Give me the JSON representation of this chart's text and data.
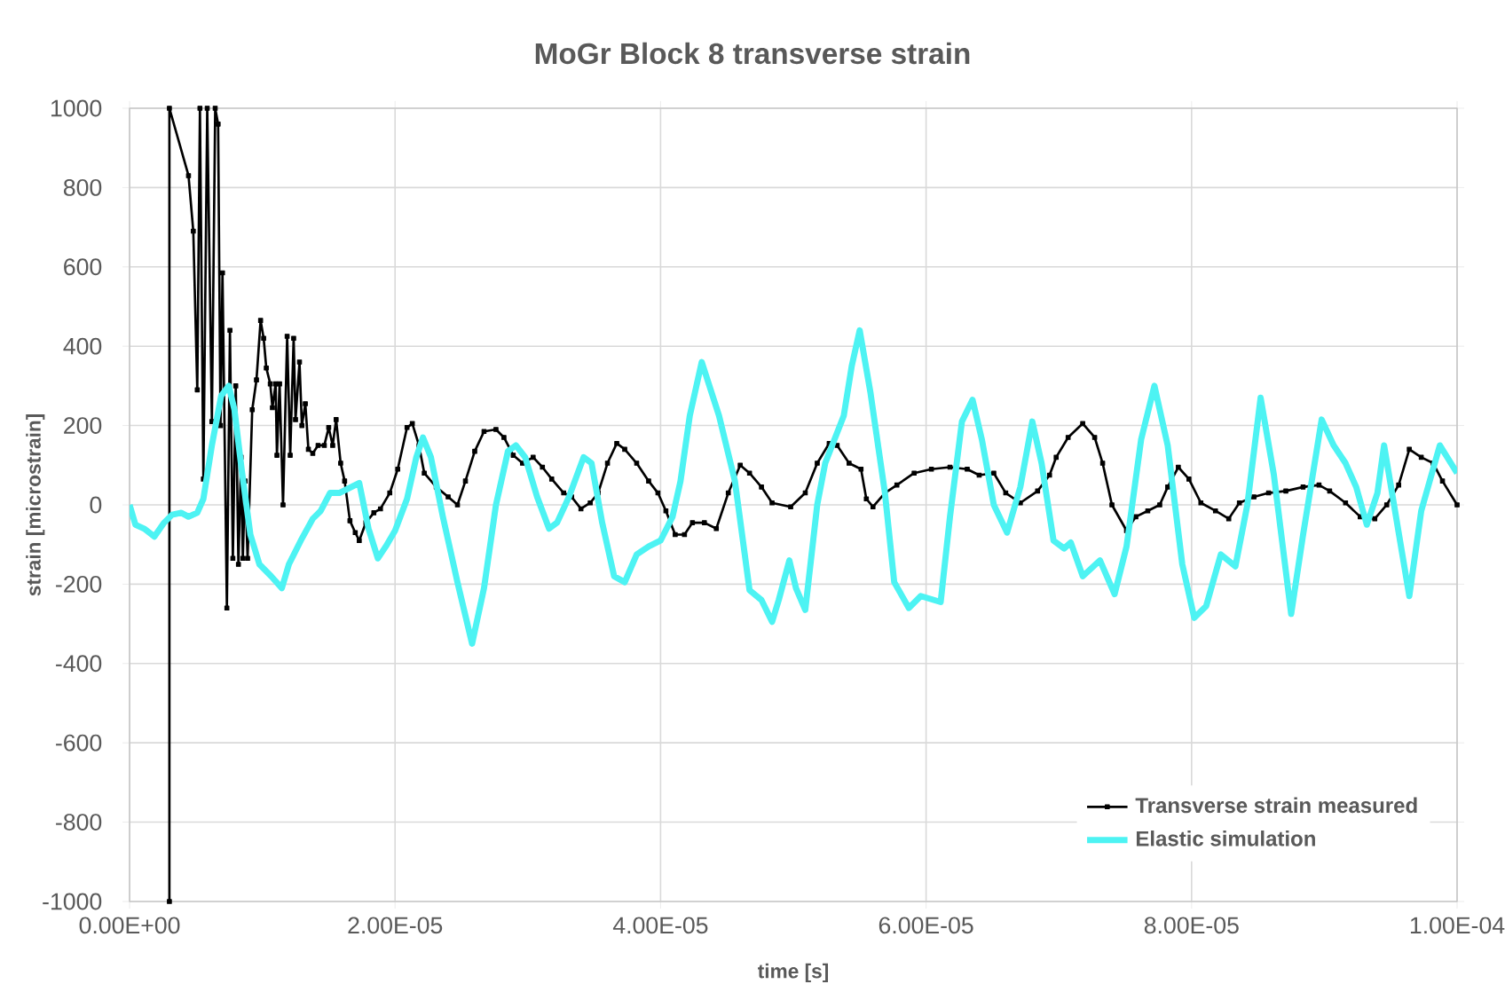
{
  "chart_data": {
    "type": "line",
    "title": "MoGr Block 8 transverse strain",
    "xlabel": "time [s]",
    "ylabel": "strain [microstrain]",
    "xlim": [
      0,
      0.0001
    ],
    "ylim": [
      -1000,
      1000
    ],
    "xticks": [
      {
        "value": 0,
        "label": "0.00E+00"
      },
      {
        "value": 2e-05,
        "label": "2.00E-05"
      },
      {
        "value": 4e-05,
        "label": "4.00E-05"
      },
      {
        "value": 6e-05,
        "label": "6.00E-05"
      },
      {
        "value": 8e-05,
        "label": "8.00E-05"
      },
      {
        "value": 0.0001,
        "label": "1.00E-04"
      }
    ],
    "yticks": [
      -1000,
      -800,
      -600,
      -400,
      -200,
      0,
      200,
      400,
      600,
      800,
      1000
    ],
    "grid": true,
    "legend": "bottom right",
    "series": [
      {
        "name": "Transverse strain measured",
        "color": "#000000",
        "marker": "square",
        "x": [
          3e-06,
          3e-06,
          4.44e-06,
          4.8e-06,
          5.1e-06,
          5.3e-06,
          5.56e-06,
          5.85e-06,
          6.2e-06,
          6.45e-06,
          6.67e-06,
          6.85e-06,
          7e-06,
          7.33e-06,
          7.56e-06,
          7.78e-06,
          8e-06,
          8.2e-06,
          8.4e-06,
          8.53e-06,
          8.7e-06,
          8.89e-06,
          9.24e-06,
          9.56e-06,
          9.87e-06,
          1.01e-05,
          1.03e-05,
          1.06e-05,
          1.076e-05,
          1.1e-05,
          1.11e-05,
          1.13e-05,
          1.156e-05,
          1.187e-05,
          1.21e-05,
          1.236e-05,
          1.25e-05,
          1.28e-05,
          1.298e-05,
          1.324e-05,
          1.347e-05,
          1.38e-05,
          1.42e-05,
          1.467e-05,
          1.5e-05,
          1.53e-05,
          1.556e-05,
          1.59e-05,
          1.62e-05,
          1.66e-05,
          1.7e-05,
          1.73e-05,
          1.78e-05,
          1.84e-05,
          1.89e-05,
          1.96e-05,
          2.02e-05,
          2.09e-05,
          2.13e-05,
          2.18e-05,
          2.22e-05,
          2.31e-05,
          2.4e-05,
          2.47e-05,
          2.53e-05,
          2.6e-05,
          2.67e-05,
          2.76e-05,
          2.82e-05,
          2.89e-05,
          2.96e-05,
          3.04e-05,
          3.11e-05,
          3.18e-05,
          3.27e-05,
          3.33e-05,
          3.4e-05,
          3.47e-05,
          3.53e-05,
          3.6e-05,
          3.67e-05,
          3.73e-05,
          3.82e-05,
          3.91e-05,
          3.98e-05,
          4.04e-05,
          4.11e-05,
          4.18e-05,
          4.24e-05,
          4.33e-05,
          4.42e-05,
          4.51e-05,
          4.6e-05,
          4.67e-05,
          4.76e-05,
          4.84e-05,
          4.98e-05,
          5.09e-05,
          5.18e-05,
          5.27e-05,
          5.33e-05,
          5.42e-05,
          5.51e-05,
          5.55e-05,
          5.6e-05,
          5.69e-05,
          5.78e-05,
          5.91e-05,
          6.04e-05,
          6.18e-05,
          6.31e-05,
          6.4e-05,
          6.51e-05,
          6.6e-05,
          6.71e-05,
          6.84e-05,
          6.93e-05,
          6.98e-05,
          7.07e-05,
          7.18e-05,
          7.27e-05,
          7.33e-05,
          7.4e-05,
          7.51e-05,
          7.58e-05,
          7.67e-05,
          7.76e-05,
          7.82e-05,
          7.9e-05,
          7.98e-05,
          8.07e-05,
          8.18e-05,
          8.28e-05,
          8.36e-05,
          8.47e-05,
          8.58e-05,
          8.71e-05,
          8.84e-05,
          8.96e-05,
          9.04e-05,
          9.16e-05,
          9.27e-05,
          9.38e-05,
          9.47e-05,
          9.56e-05,
          9.64e-05,
          9.73e-05,
          9.82e-05,
          9.89e-05,
          0.0001
        ],
        "values": [
          -1000,
          1000,
          830,
          690,
          290,
          1000,
          65,
          1000,
          210,
          1000,
          960,
          200,
          585,
          -260,
          440,
          -135,
          300,
          -150,
          120,
          -135,
          60,
          -135,
          240,
          315,
          465,
          420,
          345,
          305,
          245,
          305,
          125,
          305,
          0,
          425,
          125,
          420,
          215,
          360,
          200,
          255,
          140,
          130,
          150,
          150,
          195,
          150,
          215,
          105,
          60,
          -40,
          -70,
          -90,
          -45,
          -20,
          -10,
          30,
          90,
          195,
          205,
          150,
          80,
          45,
          20,
          0,
          60,
          135,
          185,
          190,
          170,
          125,
          105,
          120,
          95,
          65,
          30,
          20,
          -10,
          5,
          30,
          105,
          155,
          140,
          105,
          60,
          30,
          -15,
          -75,
          -75,
          -45,
          -45,
          -60,
          30,
          100,
          80,
          45,
          5,
          -5,
          30,
          105,
          155,
          150,
          105,
          90,
          15,
          -5,
          30,
          50,
          80,
          90,
          95,
          90,
          75,
          80,
          30,
          5,
          35,
          75,
          120,
          170,
          205,
          170,
          105,
          0,
          -65,
          -30,
          -15,
          0,
          45,
          95,
          65,
          5,
          -15,
          -35,
          5,
          20,
          30,
          35,
          45,
          50,
          35,
          5,
          -30,
          -35,
          0,
          50,
          140,
          120,
          105,
          60,
          0
        ]
      },
      {
        "name": "Elastic simulation",
        "color": "#4df3f3",
        "marker": "none",
        "x": [
          0,
          4.4e-07,
          1.1e-06,
          1.87e-06,
          2.6e-06,
          3.2e-06,
          3.9e-06,
          4.44e-06,
          5.1e-06,
          5.56e-06,
          6.2e-06,
          6.9e-06,
          7.47e-06,
          7.9e-06,
          8.44e-06,
          9.1e-06,
          9.78e-06,
          1.067e-05,
          1.147e-05,
          1.2e-05,
          1.29e-05,
          1.38e-05,
          1.44e-05,
          1.51e-05,
          1.58e-05,
          1.64e-05,
          1.73e-05,
          1.8e-05,
          1.87e-05,
          1.93e-05,
          2e-05,
          2.09e-05,
          2.16e-05,
          2.21e-05,
          2.27e-05,
          2.36e-05,
          2.47e-05,
          2.58e-05,
          2.67e-05,
          2.76e-05,
          2.85e-05,
          2.91e-05,
          2.98e-05,
          3.07e-05,
          3.16e-05,
          3.22e-05,
          3.31e-05,
          3.42e-05,
          3.48e-05,
          3.56e-05,
          3.65e-05,
          3.73e-05,
          3.82e-05,
          3.91e-05,
          4e-05,
          4.09e-05,
          4.15e-05,
          4.22e-05,
          4.31e-05,
          4.44e-05,
          4.56e-05,
          4.67e-05,
          4.76e-05,
          4.84e-05,
          4.89e-05,
          4.97e-05,
          5.02e-05,
          5.09e-05,
          5.18e-05,
          5.24e-05,
          5.38e-05,
          5.44e-05,
          5.5e-05,
          5.58e-05,
          5.69e-05,
          5.76e-05,
          5.87e-05,
          5.96e-05,
          6.11e-05,
          6.18e-05,
          6.27e-05,
          6.35e-05,
          6.42e-05,
          6.51e-05,
          6.61e-05,
          6.71e-05,
          6.8e-05,
          6.87e-05,
          6.96e-05,
          7.04e-05,
          7.09e-05,
          7.18e-05,
          7.31e-05,
          7.42e-05,
          7.51e-05,
          7.62e-05,
          7.72e-05,
          7.82e-05,
          7.93e-05,
          8.02e-05,
          8.11e-05,
          8.22e-05,
          8.33e-05,
          8.42e-05,
          8.52e-05,
          8.62e-05,
          8.75e-05,
          8.84e-05,
          8.98e-05,
          9.07e-05,
          9.16e-05,
          9.24e-05,
          9.32e-05,
          9.4e-05,
          9.45e-05,
          9.51e-05,
          9.64e-05,
          9.73e-05,
          9.87e-05,
          0.0001
        ],
        "values": [
          0,
          -50,
          -60,
          -80,
          -45,
          -25,
          -20,
          -30,
          -20,
          15,
          150,
          275,
          300,
          240,
          90,
          -75,
          -150,
          -180,
          -210,
          -150,
          -90,
          -35,
          -15,
          30,
          30,
          40,
          55,
          -60,
          -135,
          -105,
          -65,
          15,
          120,
          170,
          120,
          -30,
          -195,
          -350,
          -210,
          0,
          135,
          150,
          120,
          20,
          -60,
          -45,
          20,
          120,
          105,
          -45,
          -180,
          -195,
          -125,
          -105,
          -90,
          -30,
          60,
          225,
          360,
          225,
          60,
          -215,
          -240,
          -295,
          -240,
          -140,
          -210,
          -265,
          0,
          105,
          225,
          350,
          440,
          285,
          30,
          -195,
          -260,
          -230,
          -245,
          -30,
          210,
          265,
          165,
          0,
          -70,
          45,
          210,
          105,
          -90,
          -110,
          -95,
          -180,
          -140,
          -225,
          -105,
          165,
          300,
          150,
          -150,
          -285,
          -255,
          -125,
          -155,
          0,
          270,
          75,
          -275,
          -75,
          215,
          150,
          105,
          45,
          -50,
          30,
          150,
          30,
          -230,
          -15,
          150,
          80
        ]
      }
    ]
  }
}
